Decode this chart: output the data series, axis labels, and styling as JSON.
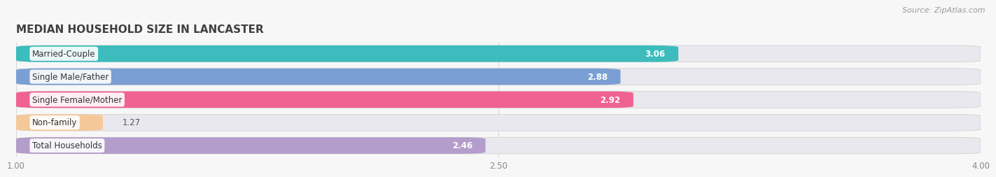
{
  "title": "MEDIAN HOUSEHOLD SIZE IN LANCASTER",
  "source": "Source: ZipAtlas.com",
  "categories": [
    "Married-Couple",
    "Single Male/Father",
    "Single Female/Mother",
    "Non-family",
    "Total Households"
  ],
  "values": [
    3.06,
    2.88,
    2.92,
    1.27,
    2.46
  ],
  "bar_colors": [
    "#3cbcbc",
    "#7b9fd4",
    "#f06292",
    "#f5c89a",
    "#b39dca"
  ],
  "bar_bg_color": "#e8e8ee",
  "xmin": 1.0,
  "xmax": 4.0,
  "xticks": [
    1.0,
    2.5,
    4.0
  ],
  "label_fontsize": 8.5,
  "value_fontsize": 8.5,
  "title_fontsize": 11,
  "bar_height": 0.72,
  "bar_gap": 0.28,
  "background_color": "#f7f7f7",
  "grid_color": "#d8d8d8"
}
